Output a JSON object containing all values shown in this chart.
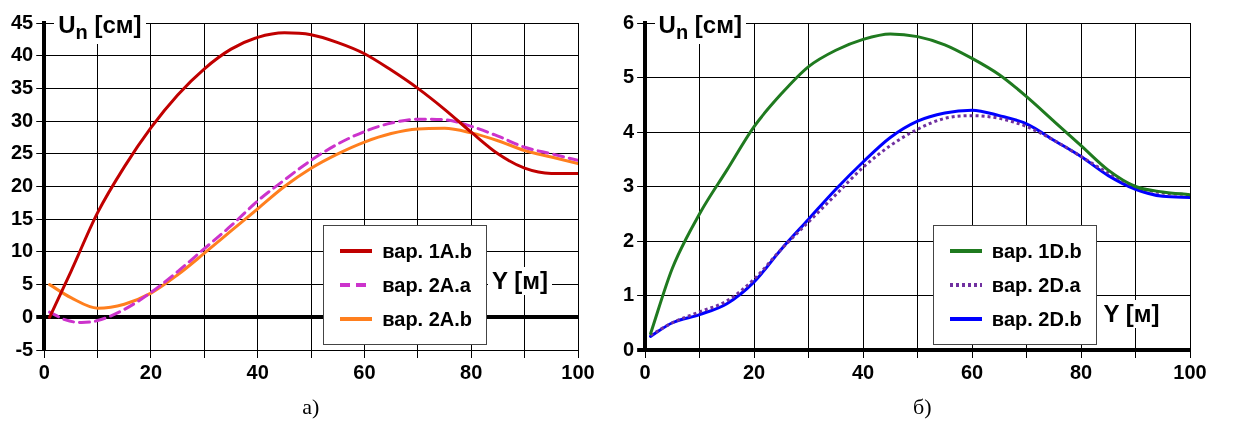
{
  "chart_data": [
    {
      "type": "line",
      "ylabel": "U$_{n}$ [см]",
      "xlabel": "Y [м]",
      "annotations": [
        "а)"
      ],
      "xlim": [
        0,
        100
      ],
      "ylim": [
        -5,
        45
      ],
      "xticks": [
        0,
        {
          "value": 10,
          "label": null
        },
        20,
        {
          "value": 30,
          "label": null
        },
        40,
        {
          "value": 50,
          "label": null
        },
        60,
        {
          "value": 70,
          "label": null
        },
        80,
        {
          "value": 90,
          "label": null
        },
        100
      ],
      "yticks": [
        -5,
        0,
        5,
        10,
        15,
        20,
        25,
        30,
        35,
        40,
        45
      ],
      "grid": true,
      "legend": "bottom right",
      "marker": "none",
      "x": [
        1,
        5,
        10,
        15,
        20,
        25,
        30,
        35,
        40,
        45,
        50,
        55,
        60,
        65,
        70,
        75,
        80,
        85,
        90,
        95,
        100
      ],
      "series": [
        {
          "name": "вар. 1A.b",
          "color": "#c00000",
          "line_style": "solid",
          "values": [
            0,
            7,
            16,
            23,
            29,
            34,
            38,
            41,
            42.8,
            43.5,
            43.2,
            42,
            40.3,
            37.8,
            35,
            31.8,
            28.3,
            25,
            22.8,
            22,
            22
          ]
        },
        {
          "name": "вар. 2A.a",
          "color": "#cc33cc",
          "line_style": "dashed",
          "x": [
            1,
            4,
            7,
            10,
            15,
            20,
            25,
            30,
            35,
            40,
            45,
            50,
            55,
            60,
            65,
            70,
            75,
            80,
            85,
            90,
            95,
            100
          ],
          "values": [
            0.8,
            -0.4,
            -0.8,
            -0.5,
            1.2,
            3.8,
            7,
            10.5,
            14,
            17.8,
            21,
            24,
            26.5,
            28.4,
            29.7,
            30.3,
            30.2,
            29.2,
            27.7,
            26,
            25,
            24
          ]
        },
        {
          "name": "вар. 2A.b",
          "color": "#ff7f1e",
          "line_style": "solid",
          "values": [
            5,
            3,
            1.4,
            2,
            3.7,
            6.5,
            9.8,
            13.2,
            16.6,
            20,
            22.8,
            25,
            26.8,
            28.1,
            28.8,
            28.9,
            28.2,
            27,
            25.5,
            24.5,
            23.5
          ]
        }
      ]
    },
    {
      "type": "line",
      "ylabel": "U$_{n}$ [см]",
      "xlabel": "Y [м]",
      "annotations": [
        "б)"
      ],
      "xlim": [
        0,
        100
      ],
      "ylim": [
        0,
        6
      ],
      "xticks": [
        0,
        {
          "value": 10,
          "label": null
        },
        20,
        {
          "value": 30,
          "label": null
        },
        40,
        {
          "value": 50,
          "label": null
        },
        60,
        {
          "value": 70,
          "label": null
        },
        80,
        {
          "value": 90,
          "label": null
        },
        100
      ],
      "yticks": [
        0,
        1,
        2,
        3,
        4,
        5,
        6
      ],
      "grid": true,
      "legend": "bottom right",
      "marker": "none",
      "x": [
        1,
        5,
        10,
        15,
        20,
        25,
        30,
        35,
        40,
        45,
        50,
        55,
        60,
        65,
        70,
        75,
        80,
        85,
        90,
        95,
        100
      ],
      "series": [
        {
          "name": "вар. 1D.b",
          "color": "#1f7a1f",
          "line_style": "solid",
          "values": [
            0.3,
            1.5,
            2.5,
            3.3,
            4.1,
            4.7,
            5.2,
            5.5,
            5.7,
            5.8,
            5.75,
            5.6,
            5.35,
            5.05,
            4.65,
            4.2,
            3.75,
            3.3,
            3,
            2.9,
            2.85
          ]
        },
        {
          "name": "вар. 2D.a",
          "color": "#7030a0",
          "line_style": "dotted",
          "values": [
            0.27,
            0.5,
            0.7,
            0.9,
            1.3,
            1.85,
            2.35,
            2.85,
            3.35,
            3.75,
            4.05,
            4.25,
            4.3,
            4.25,
            4.1,
            3.85,
            3.55,
            3.25,
            3,
            2.88,
            2.85
          ]
        },
        {
          "name": "вар. 2D.b",
          "color": "#0000ff",
          "line_style": "solid",
          "values": [
            0.25,
            0.5,
            0.65,
            0.85,
            1.25,
            1.85,
            2.4,
            2.95,
            3.45,
            3.9,
            4.2,
            4.35,
            4.4,
            4.3,
            4.15,
            3.85,
            3.55,
            3.2,
            2.95,
            2.82,
            2.8
          ]
        }
      ]
    }
  ]
}
